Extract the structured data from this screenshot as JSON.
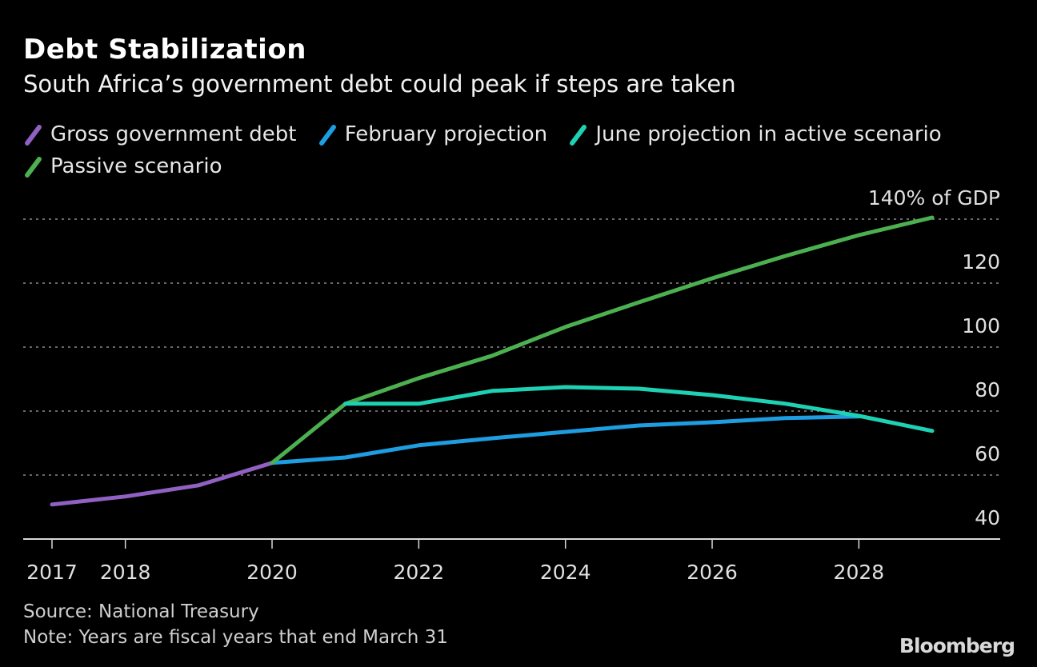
{
  "chart_data": {
    "type": "line",
    "title": "Debt Stabilization",
    "subtitle": "South Africa’s government debt could peak if steps are taken",
    "xlabel": "",
    "ylabel": "% of GDP",
    "unit_label": "140% of GDP",
    "xlim": [
      2016.8,
      2030.0
    ],
    "ylim": [
      40,
      140
    ],
    "grid": true,
    "legend_position": "top-left",
    "x_ticks": [
      2017,
      2018,
      2020,
      2022,
      2024,
      2026,
      2028
    ],
    "x_tick_labels": [
      "2017",
      "2018",
      "2020",
      "2022",
      "2024",
      "2026",
      "2028"
    ],
    "y_ticks": [
      40,
      60,
      80,
      100,
      120,
      140
    ],
    "y_tick_labels": [
      "40",
      "60",
      "80",
      "100",
      "120",
      "140% of GDP"
    ],
    "series": [
      {
        "name": "Gross government debt",
        "color": "#9061c2",
        "x": [
          2017,
          2018,
          2019,
          2020
        ],
        "values": [
          50.8,
          53.3,
          56.8,
          63.8
        ]
      },
      {
        "name": "February projection",
        "color": "#1e9de0",
        "x": [
          2020,
          2021,
          2022,
          2023,
          2024,
          2025,
          2026,
          2027,
          2028
        ],
        "values": [
          63.8,
          65.5,
          69.3,
          71.5,
          73.5,
          75.5,
          76.5,
          77.8,
          78.3
        ]
      },
      {
        "name": "June projection in active scenario",
        "color": "#1fd1b4",
        "x": [
          2021,
          2022,
          2023,
          2024,
          2025,
          2026,
          2027,
          2028,
          2029
        ],
        "values": [
          82.3,
          82.3,
          86.3,
          87.5,
          87.0,
          85.0,
          82.3,
          78.5,
          73.8
        ]
      },
      {
        "name": "Passive scenario",
        "color": "#4caf50",
        "x": [
          2020,
          2021,
          2022,
          2023,
          2024,
          2025,
          2026,
          2027,
          2028,
          2029
        ],
        "values": [
          63.8,
          82.3,
          90.3,
          97.3,
          106.3,
          114.0,
          121.5,
          128.5,
          135.0,
          140.5
        ]
      }
    ]
  },
  "footer": {
    "source": "Source: National Treasury",
    "note": "Note: Years are fiscal years that end March 31",
    "brand": "Bloomberg"
  }
}
